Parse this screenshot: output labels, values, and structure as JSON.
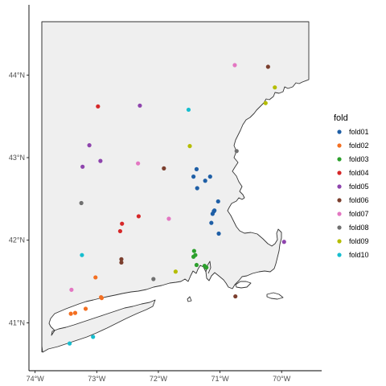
{
  "chart_data": {
    "type": "scatter",
    "title": "",
    "xlabel": "",
    "ylabel": "",
    "xlim": [
      -74.1,
      -69.35
    ],
    "ylim": [
      40.42,
      44.85
    ],
    "x_ticks": [
      {
        "value": -74,
        "label": "74°W"
      },
      {
        "value": -73,
        "label": "73°W"
      },
      {
        "value": -72,
        "label": "72°W"
      },
      {
        "value": -71,
        "label": "71°W"
      },
      {
        "value": -70,
        "label": "70°W"
      }
    ],
    "y_ticks": [
      {
        "value": 41,
        "label": "41°N"
      },
      {
        "value": 42,
        "label": "42°N"
      },
      {
        "value": 43,
        "label": "43°N"
      },
      {
        "value": 44,
        "label": "44°N"
      }
    ],
    "grid": false,
    "legend": {
      "title": "fold",
      "position": "right"
    },
    "series": [
      {
        "name": "fold01",
        "color": "#1f5fa6",
        "points": [
          [
            -71.38,
            42.86
          ],
          [
            -71.43,
            42.77
          ],
          [
            -71.37,
            42.63
          ],
          [
            -71.24,
            42.72
          ],
          [
            -71.16,
            42.77
          ],
          [
            -71.03,
            42.47
          ],
          [
            -71.09,
            42.36
          ],
          [
            -71.12,
            42.32
          ],
          [
            -71.1,
            42.35
          ],
          [
            -71.14,
            42.21
          ],
          [
            -71.02,
            42.08
          ]
        ]
      },
      {
        "name": "fold02",
        "color": "#f36f21",
        "points": [
          [
            -73.02,
            41.55
          ],
          [
            -72.92,
            41.3
          ],
          [
            -72.93,
            41.31
          ],
          [
            -73.18,
            41.17
          ],
          [
            -73.35,
            41.12
          ],
          [
            -73.42,
            41.11
          ]
        ]
      },
      {
        "name": "fold03",
        "color": "#2ca02c",
        "points": [
          [
            -71.42,
            41.87
          ],
          [
            -71.4,
            41.82
          ],
          [
            -71.43,
            41.8
          ],
          [
            -71.38,
            41.7
          ],
          [
            -71.25,
            41.69
          ],
          [
            -71.22,
            41.67
          ]
        ]
      },
      {
        "name": "fold04",
        "color": "#d62728",
        "points": [
          [
            -72.98,
            43.62
          ],
          [
            -72.32,
            42.29
          ],
          [
            -72.59,
            42.2
          ],
          [
            -72.62,
            42.11
          ]
        ]
      },
      {
        "name": "fold05",
        "color": "#8e44ad",
        "points": [
          [
            -72.3,
            43.63
          ],
          [
            -73.12,
            43.15
          ],
          [
            -72.94,
            42.96
          ],
          [
            -73.23,
            42.89
          ],
          [
            -69.96,
            41.98
          ]
        ]
      },
      {
        "name": "fold06",
        "color": "#7b3f2e",
        "points": [
          [
            -70.22,
            44.1
          ],
          [
            -71.91,
            42.87
          ],
          [
            -72.6,
            41.77
          ],
          [
            -72.6,
            41.73
          ],
          [
            -70.75,
            41.32
          ]
        ]
      },
      {
        "name": "fold07",
        "color": "#e377c2",
        "points": [
          [
            -70.76,
            44.12
          ],
          [
            -72.33,
            42.93
          ],
          [
            -71.83,
            42.26
          ],
          [
            -73.41,
            41.4
          ]
        ]
      },
      {
        "name": "fold08",
        "color": "#707070",
        "points": [
          [
            -70.73,
            43.08
          ],
          [
            -73.25,
            42.45
          ],
          [
            -72.08,
            41.53
          ]
        ]
      },
      {
        "name": "fold09",
        "color": "#b5bd00",
        "points": [
          [
            -70.11,
            43.85
          ],
          [
            -70.26,
            43.66
          ],
          [
            -71.49,
            43.14
          ],
          [
            -71.72,
            41.62
          ]
        ]
      },
      {
        "name": "fold10",
        "color": "#17becf",
        "points": [
          [
            -71.51,
            43.58
          ],
          [
            -73.24,
            41.82
          ],
          [
            -73.06,
            40.83
          ],
          [
            -73.44,
            40.75
          ]
        ]
      }
    ]
  }
}
